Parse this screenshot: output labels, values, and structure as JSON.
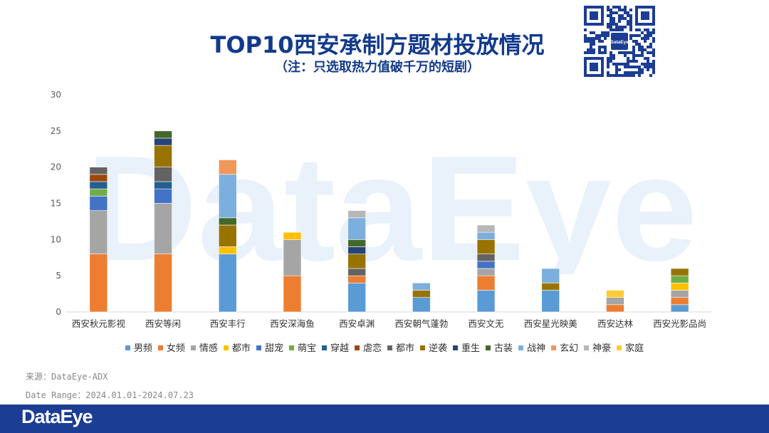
{
  "header": {
    "title": "TOP10西安承制方题材投放情况",
    "subtitle": "（注：只选取热力值破千万的短剧）",
    "qr_logo": "DataEye"
  },
  "watermark": {
    "text": "DataEye"
  },
  "footer": {
    "source": "来源：DataEye-ADX",
    "date_range": "Date Range：2024.01.01-2024.07.23",
    "logo": "DataEye"
  },
  "colors": {
    "男频": "#5b9bd5",
    "女频": "#ed7d31",
    "情感": "#a5a5a5",
    "都市": "#ffc000",
    "甜宠": "#4472c4",
    "萌宝": "#70ad47",
    "穿越": "#255e91",
    "虐恋": "#9e480e",
    "都市2": "#636363",
    "逆袭": "#997300",
    "重生": "#264478",
    "古装": "#43682b",
    "战神": "#7cafdd",
    "玄幻": "#f1975a",
    "神豪": "#b7b7b7",
    "家庭": "#ffcd33"
  },
  "chart_data": {
    "type": "bar",
    "stacked": true,
    "title": "TOP10西安承制方题材投放情况",
    "xlabel": "",
    "ylabel": "",
    "ylim": [
      0,
      30
    ],
    "yticks": [
      0,
      5,
      10,
      15,
      20,
      25,
      30
    ],
    "legend_position": "bottom",
    "categories": [
      "西安秋元影视",
      "西安等闲",
      "西安丰行",
      "西安深海鱼",
      "西安卓渊",
      "西安朝气蓬勃",
      "西安文无",
      "西安星光映美",
      "西安达林",
      "西安光影品尚"
    ],
    "series": [
      {
        "name": "男频",
        "color_key": "男频",
        "values": [
          0,
          0,
          8,
          0,
          4,
          2,
          3,
          3,
          0,
          1
        ]
      },
      {
        "name": "女频",
        "color_key": "女频",
        "values": [
          8,
          8,
          0,
          5,
          1,
          0,
          2,
          0,
          1,
          1
        ]
      },
      {
        "name": "情感",
        "color_key": "情感",
        "values": [
          6,
          7,
          0,
          5,
          0,
          0,
          1,
          0,
          1,
          1
        ]
      },
      {
        "name": "都市",
        "color_key": "都市",
        "values": [
          0,
          0,
          1,
          1,
          0,
          0,
          0,
          0,
          0,
          1
        ]
      },
      {
        "name": "甜宠",
        "color_key": "甜宠",
        "values": [
          2,
          2,
          0,
          0,
          0,
          0,
          1,
          0,
          0,
          0
        ]
      },
      {
        "name": "萌宝",
        "color_key": "萌宝",
        "values": [
          1,
          0,
          0,
          0,
          0,
          0,
          0,
          0,
          0,
          1
        ]
      },
      {
        "name": "穿越",
        "color_key": "穿越",
        "values": [
          1,
          1,
          0,
          0,
          0,
          0,
          0,
          0,
          0,
          0
        ]
      },
      {
        "name": "虐恋",
        "color_key": "虐恋",
        "values": [
          1,
          0,
          0,
          0,
          0,
          0,
          0,
          0,
          0,
          0
        ]
      },
      {
        "name": "都市",
        "color_key": "都市2",
        "values": [
          1,
          2,
          0,
          0,
          1,
          0,
          1,
          0,
          0,
          0
        ]
      },
      {
        "name": "逆袭",
        "color_key": "逆袭",
        "values": [
          0,
          3,
          3,
          0,
          2,
          1,
          2,
          1,
          0,
          1
        ]
      },
      {
        "name": "重生",
        "color_key": "重生",
        "values": [
          0,
          1,
          0,
          0,
          1,
          0,
          0,
          0,
          0,
          0
        ]
      },
      {
        "name": "古装",
        "color_key": "古装",
        "values": [
          0,
          1,
          1,
          0,
          1,
          0,
          0,
          0,
          0,
          0
        ]
      },
      {
        "name": "战神",
        "color_key": "战神",
        "values": [
          0,
          0,
          6,
          0,
          3,
          1,
          1,
          2,
          0,
          0
        ]
      },
      {
        "name": "玄幻",
        "color_key": "玄幻",
        "values": [
          0,
          0,
          2,
          0,
          0,
          0,
          0,
          0,
          0,
          0
        ]
      },
      {
        "name": "神豪",
        "color_key": "神豪",
        "values": [
          0,
          0,
          0,
          0,
          1,
          0,
          1,
          0,
          0,
          0
        ]
      },
      {
        "name": "家庭",
        "color_key": "家庭",
        "values": [
          0,
          0,
          0,
          0,
          0,
          0,
          0,
          0,
          1,
          0
        ]
      }
    ]
  }
}
